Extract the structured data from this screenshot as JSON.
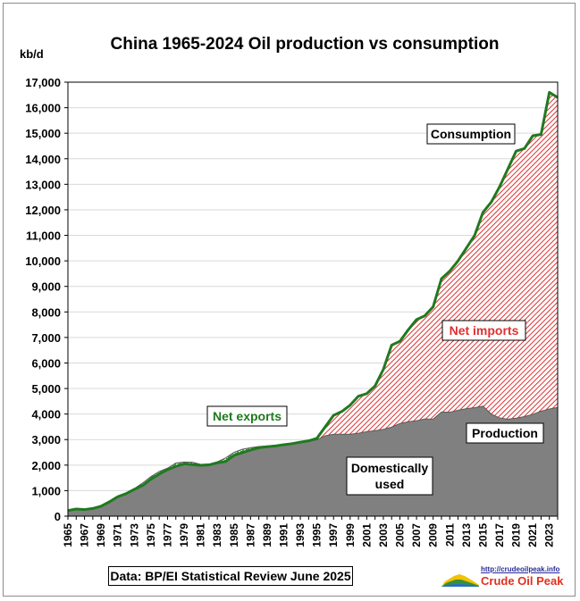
{
  "chart_data": {
    "type": "area",
    "title": "China 1965-2024 Oil production vs consumption",
    "ylabel": "kb/d",
    "xlabel": "",
    "ylim": [
      0,
      17000
    ],
    "yticks": [
      "0",
      "1,000",
      "2,000",
      "3,000",
      "4,000",
      "5,000",
      "6,000",
      "7,000",
      "8,000",
      "9,000",
      "10,000",
      "11,000",
      "12,000",
      "13,000",
      "14,000",
      "15,000",
      "16,000",
      "17,000"
    ],
    "x_tick_labels": [
      "1965",
      "1967",
      "1969",
      "1971",
      "1973",
      "1975",
      "1977",
      "1979",
      "1981",
      "1983",
      "1985",
      "1987",
      "1989",
      "1991",
      "1993",
      "1995",
      "1997",
      "1999",
      "2001",
      "2003",
      "2005",
      "2007",
      "2009",
      "2011",
      "2013",
      "2015",
      "2017",
      "2019",
      "2021",
      "2023"
    ],
    "years": [
      1965,
      1966,
      1967,
      1968,
      1969,
      1970,
      1971,
      1972,
      1973,
      1974,
      1975,
      1976,
      1977,
      1978,
      1979,
      1980,
      1981,
      1982,
      1983,
      1984,
      1985,
      1986,
      1987,
      1988,
      1989,
      1990,
      1991,
      1992,
      1993,
      1994,
      1995,
      1996,
      1997,
      1998,
      1999,
      2000,
      2001,
      2002,
      2003,
      2004,
      2005,
      2006,
      2007,
      2008,
      2009,
      2010,
      2011,
      2012,
      2013,
      2014,
      2015,
      2016,
      2017,
      2018,
      2019,
      2020,
      2021,
      2022,
      2023,
      2024
    ],
    "series": [
      {
        "name": "Consumption",
        "color": "#1f7a1f",
        "values": [
          220,
          280,
          260,
          300,
          390,
          560,
          760,
          880,
          1050,
          1200,
          1450,
          1650,
          1820,
          1950,
          2050,
          2020,
          1990,
          2010,
          2090,
          2140,
          2380,
          2490,
          2590,
          2680,
          2720,
          2750,
          2800,
          2840,
          2900,
          2950,
          3050,
          3500,
          3950,
          4100,
          4350,
          4700,
          4800,
          5100,
          5750,
          6700,
          6850,
          7300,
          7700,
          7850,
          8200,
          9300,
          9600,
          10000,
          10500,
          11000,
          11900,
          12300,
          12900,
          13600,
          14300,
          14400,
          14900,
          14950,
          16600,
          16400
        ]
      },
      {
        "name": "Production",
        "color": "#808080",
        "values": [
          230,
          290,
          280,
          300,
          420,
          600,
          780,
          900,
          1080,
          1300,
          1550,
          1750,
          1880,
          2080,
          2120,
          2110,
          2030,
          2040,
          2130,
          2280,
          2500,
          2620,
          2680,
          2730,
          2750,
          2770,
          2820,
          2840,
          2890,
          2930,
          2990,
          3150,
          3210,
          3210,
          3210,
          3250,
          3310,
          3350,
          3400,
          3490,
          3630,
          3700,
          3740,
          3810,
          3800,
          4080,
          4070,
          4150,
          4210,
          4250,
          4310,
          4000,
          3850,
          3800,
          3840,
          3900,
          3990,
          4110,
          4200,
          4260
        ]
      }
    ],
    "annotations": {
      "consumption": "Consumption",
      "net_imports": "Net imports",
      "net_exports": "Net exports",
      "production": "Production",
      "domestically_used": [
        "Domestically",
        "used"
      ]
    },
    "colors": {
      "net_imports_hatch": "#e03030",
      "net_exports_hatch": "#2e8b2e",
      "production_fill": "#808080",
      "consumption_line": "#1f7a1f",
      "net_imports_text": "#e03030",
      "net_exports_text": "#1e7a1e"
    },
    "grid": true,
    "legend": "none"
  },
  "source": "Data: BP/EI Statistical Review June 2025",
  "logo": {
    "url": "http://crudeoilpeak.info",
    "name": "Crude Oil Peak"
  }
}
